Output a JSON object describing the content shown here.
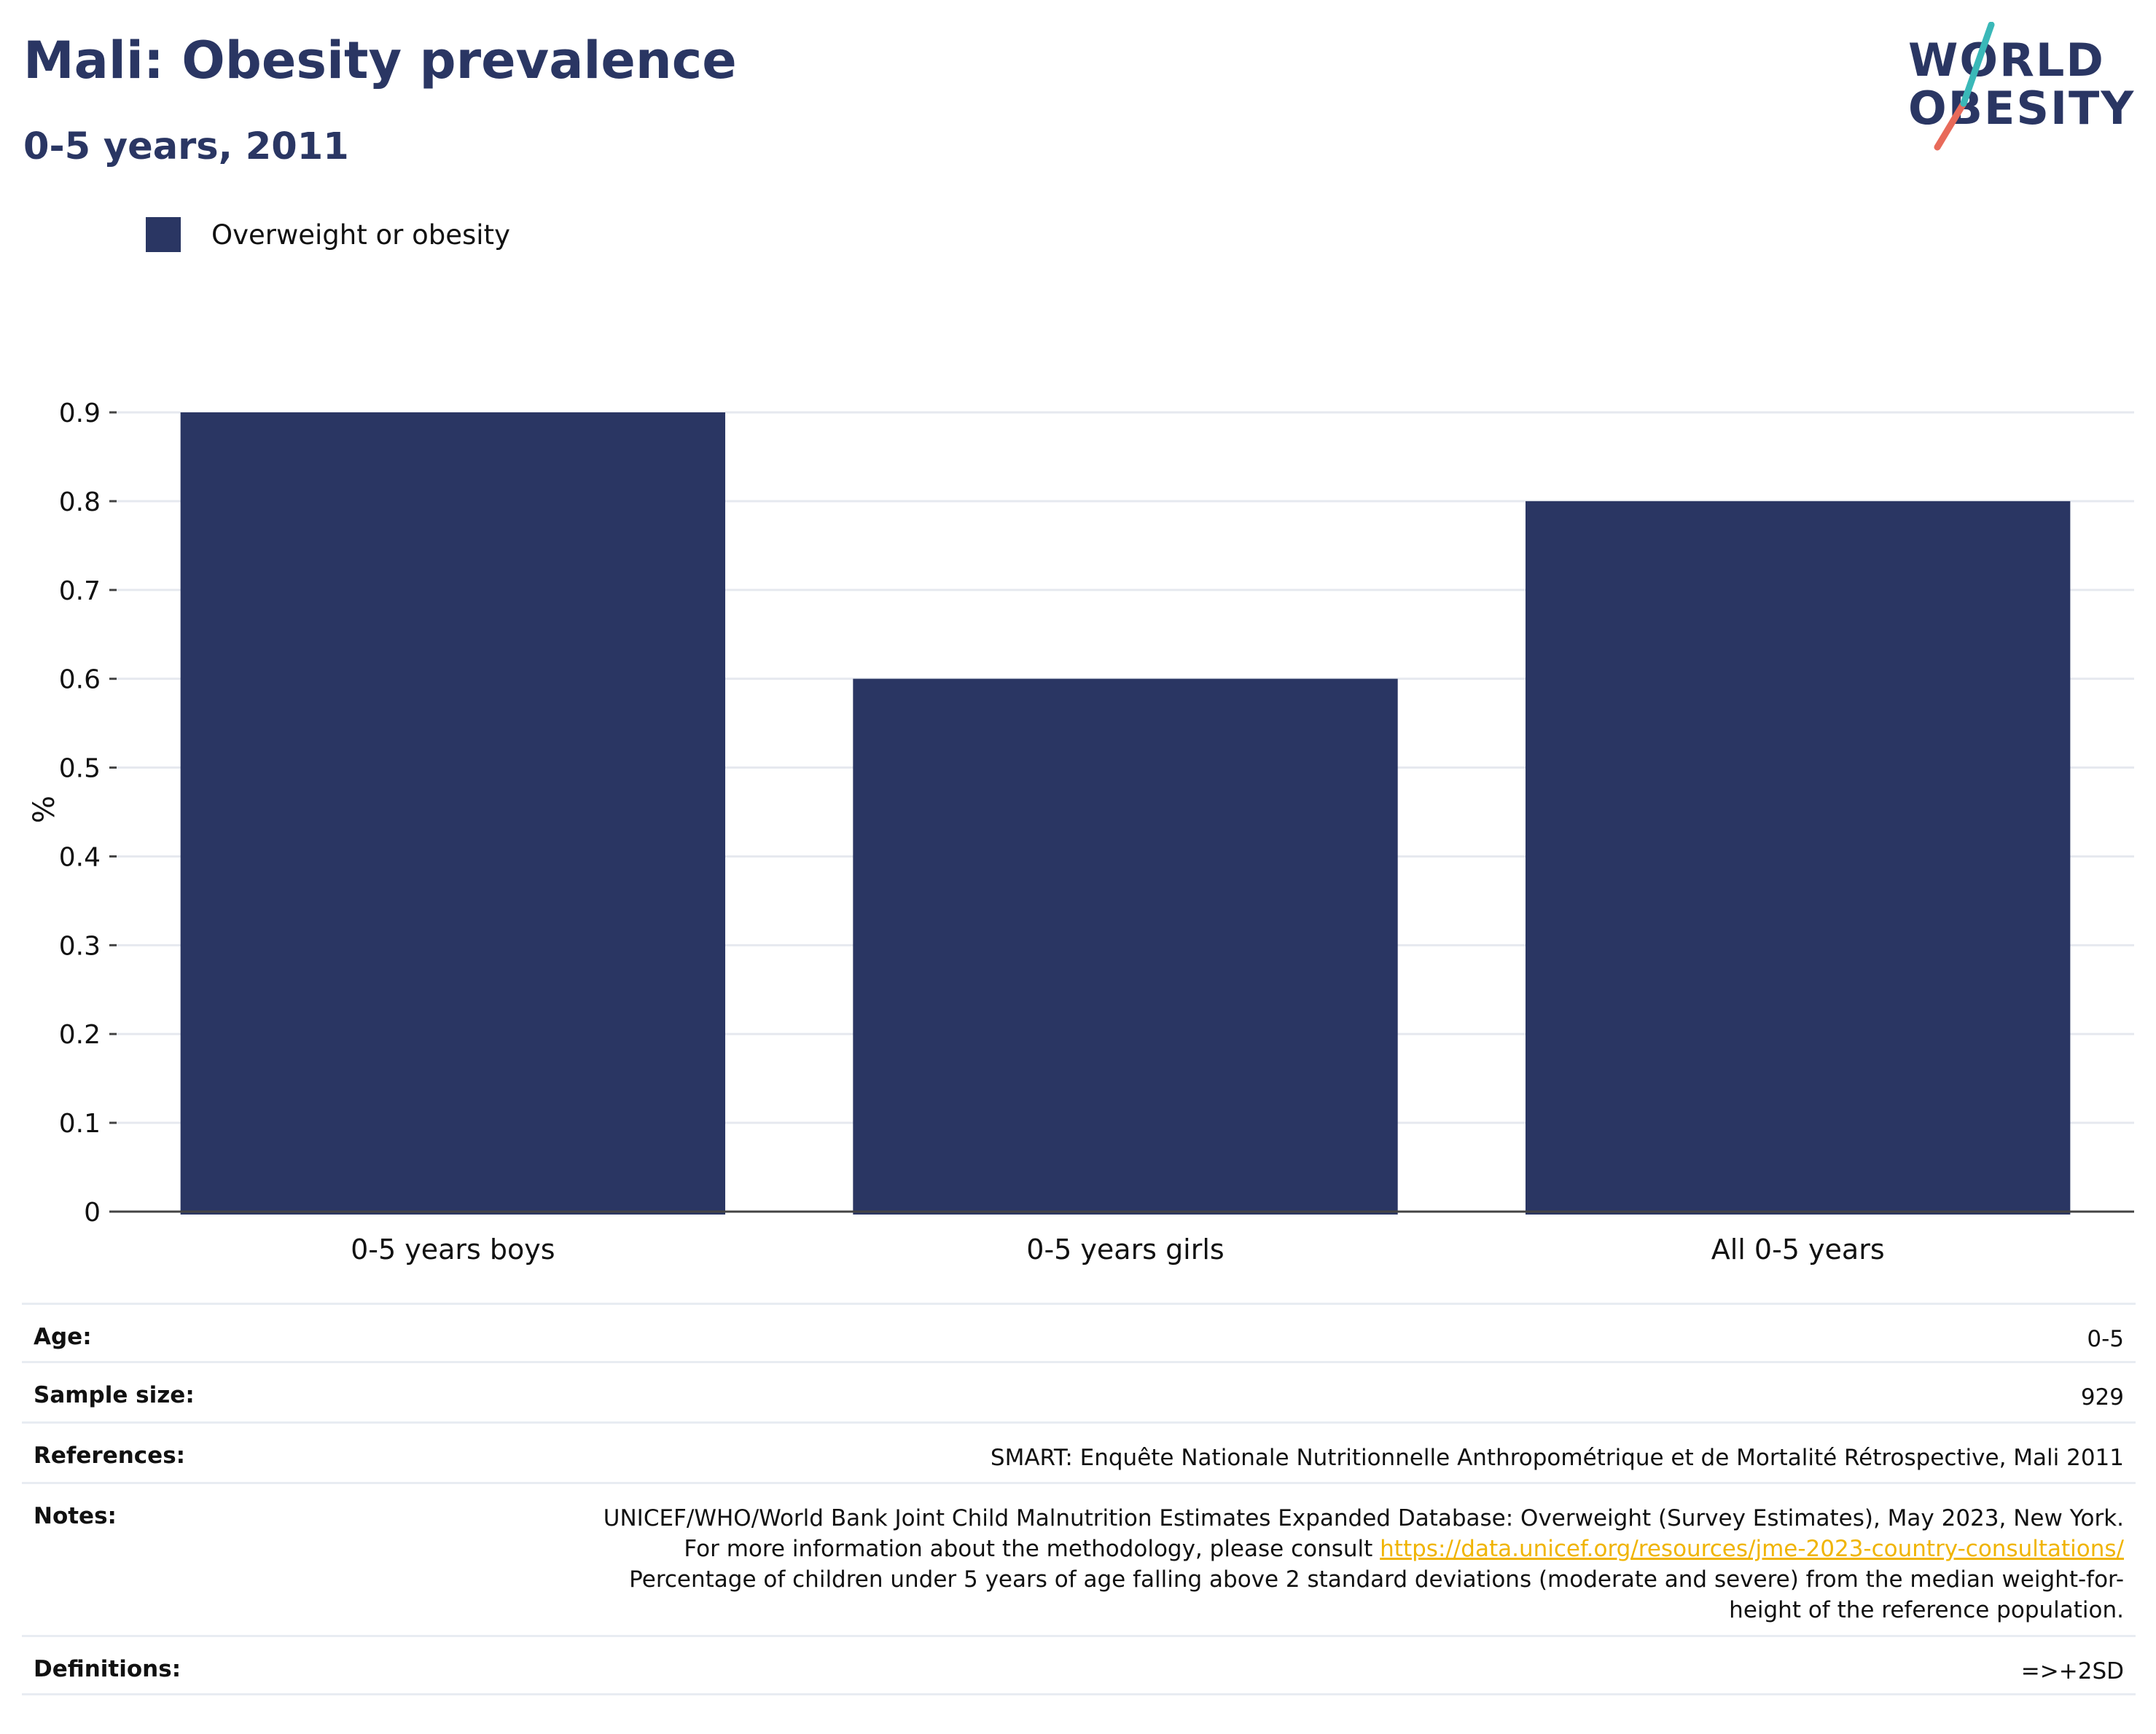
{
  "header": {
    "title": "Mali: Obesity prevalence",
    "subtitle": "0-5 years, 2011"
  },
  "logo": {
    "line1": "WORLD",
    "line2": "OBESITY"
  },
  "colors": {
    "bar": "#2a3663",
    "grid": "#e6e9ef",
    "link": "#f0b400"
  },
  "chart_data": {
    "type": "bar",
    "categories": [
      "0-5 years boys",
      "0-5 years girls",
      "All 0-5 years"
    ],
    "series": [
      {
        "name": "Overweight or obesity",
        "values": [
          0.9,
          0.6,
          0.8
        ]
      }
    ],
    "ylabel": "%",
    "ylim": [
      0,
      0.9
    ],
    "yticks": [
      "0",
      "0.1",
      "0.2",
      "0.3",
      "0.4",
      "0.5",
      "0.6",
      "0.7",
      "0.8",
      "0.9"
    ],
    "grid": true,
    "legend": "top-left"
  },
  "info": {
    "age_label": "Age:",
    "age_value": "0-5",
    "sample_label": "Sample size:",
    "sample_value": "929",
    "references_label": "References:",
    "references_value": "SMART: Enquête Nationale Nutritionnelle Anthropométrique et de Mortalité Rétrospective, Mali 2011",
    "notes_label": "Notes:",
    "notes_text1": "UNICEF/WHO/World Bank Joint Child Malnutrition Estimates Expanded Database: Overweight (Survey Estimates), May 2023, New York. For more information about the methodology, please consult ",
    "notes_link": "https://data.unicef.org/resources/jme-2023-country-consultations/",
    "notes_text2": "Percentage of children under 5 years of age falling above 2 standard deviations (moderate and severe) from the median weight-for-height of the reference population.",
    "definitions_label": "Definitions:",
    "definitions_value": "=>+2SD"
  }
}
